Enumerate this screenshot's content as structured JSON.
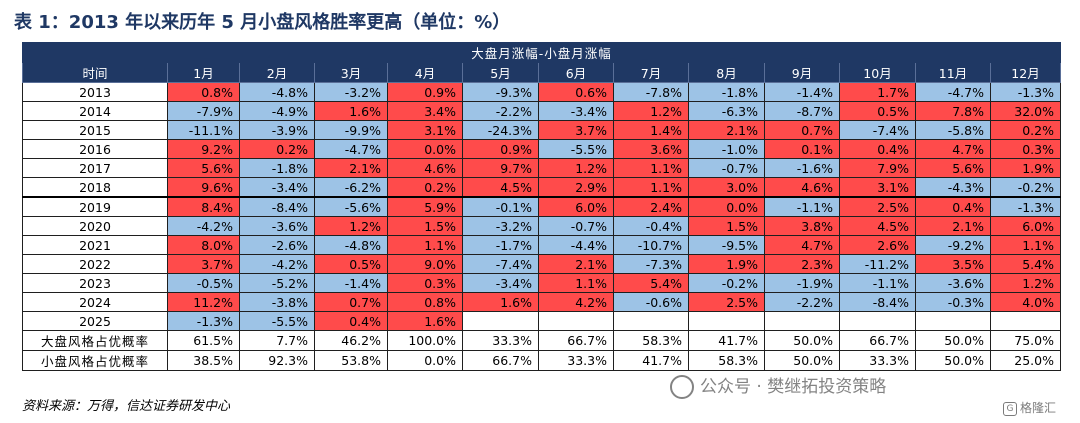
{
  "title": "表 1：2013 年以来历年 5 月小盘风格胜率更高（单位：%）",
  "table": {
    "banner": "大盘月涨幅-小盘月涨幅",
    "header": [
      "时间",
      "1月",
      "2月",
      "3月",
      "4月",
      "5月",
      "6月",
      "7月",
      "8月",
      "9月",
      "10月",
      "11月",
      "12月"
    ],
    "rows": [
      {
        "year": "2013",
        "cells": [
          "0.8%",
          "-4.8%",
          "-3.2%",
          "0.9%",
          "-9.3%",
          "0.6%",
          "-7.8%",
          "-1.8%",
          "-1.4%",
          "1.7%",
          "-4.7%",
          "-1.3%"
        ]
      },
      {
        "year": "2014",
        "cells": [
          "-7.9%",
          "-4.9%",
          "1.6%",
          "3.4%",
          "-2.2%",
          "-3.4%",
          "1.2%",
          "-6.3%",
          "-8.7%",
          "0.5%",
          "7.8%",
          "32.0%"
        ]
      },
      {
        "year": "2015",
        "cells": [
          "-11.1%",
          "-3.9%",
          "-9.9%",
          "3.1%",
          "-24.3%",
          "3.7%",
          "1.4%",
          "2.1%",
          "0.7%",
          "-7.4%",
          "-5.8%",
          "0.2%"
        ]
      },
      {
        "year": "2016",
        "cells": [
          "9.2%",
          "0.2%",
          "-4.7%",
          "0.0%",
          "0.9%",
          "-5.5%",
          "3.6%",
          "-1.0%",
          "0.1%",
          "0.4%",
          "4.7%",
          "0.3%"
        ]
      },
      {
        "year": "2017",
        "cells": [
          "5.6%",
          "-1.8%",
          "2.1%",
          "4.6%",
          "9.7%",
          "1.2%",
          "1.1%",
          "-0.7%",
          "-1.6%",
          "7.9%",
          "5.6%",
          "1.9%"
        ]
      },
      {
        "year": "2018",
        "cells": [
          "9.6%",
          "-3.4%",
          "-6.2%",
          "0.2%",
          "4.5%",
          "2.9%",
          "1.1%",
          "3.0%",
          "4.6%",
          "3.1%",
          "-4.3%",
          "-0.2%"
        ]
      },
      {
        "year": "2019",
        "cells": [
          "8.4%",
          "-8.4%",
          "-5.6%",
          "5.9%",
          "-0.1%",
          "6.0%",
          "2.4%",
          "0.0%",
          "-1.1%",
          "2.5%",
          "0.4%",
          "-1.3%"
        ]
      },
      {
        "year": "2020",
        "cells": [
          "-4.2%",
          "-3.6%",
          "1.2%",
          "1.5%",
          "-3.2%",
          "-0.7%",
          "-0.4%",
          "1.5%",
          "3.8%",
          "4.5%",
          "2.1%",
          "6.0%"
        ]
      },
      {
        "year": "2021",
        "cells": [
          "8.0%",
          "-2.6%",
          "-4.8%",
          "1.1%",
          "-1.7%",
          "-4.4%",
          "-10.7%",
          "-9.5%",
          "4.7%",
          "2.6%",
          "-9.2%",
          "1.1%"
        ]
      },
      {
        "year": "2022",
        "cells": [
          "3.7%",
          "-4.2%",
          "0.5%",
          "9.0%",
          "-7.4%",
          "2.1%",
          "-7.3%",
          "1.9%",
          "2.3%",
          "-11.2%",
          "3.5%",
          "5.4%"
        ]
      },
      {
        "year": "2023",
        "cells": [
          "-0.5%",
          "-5.2%",
          "-1.4%",
          "0.3%",
          "-3.4%",
          "1.1%",
          "5.4%",
          "-0.2%",
          "-1.9%",
          "-1.1%",
          "-3.6%",
          "1.2%"
        ]
      },
      {
        "year": "2024",
        "cells": [
          "11.2%",
          "-3.8%",
          "0.7%",
          "0.8%",
          "1.6%",
          "4.2%",
          "-0.6%",
          "2.5%",
          "-2.2%",
          "-8.4%",
          "-0.3%",
          "4.0%"
        ]
      },
      {
        "year": "2025",
        "cells": [
          "-1.3%",
          "-5.5%",
          "0.4%",
          "1.6%",
          "",
          "",
          "",
          "",
          "",
          "",
          "",
          ""
        ]
      }
    ],
    "summary": [
      {
        "label": "大盘风格占优概率",
        "cells": [
          "61.5%",
          "7.7%",
          "46.2%",
          "100.0%",
          "33.3%",
          "66.7%",
          "58.3%",
          "41.7%",
          "50.0%",
          "66.7%",
          "50.0%",
          "75.0%"
        ]
      },
      {
        "label": "小盘风格占优概率",
        "cells": [
          "38.5%",
          "92.3%",
          "53.8%",
          "0.0%",
          "66.7%",
          "33.3%",
          "41.7%",
          "58.3%",
          "50.0%",
          "33.3%",
          "50.0%",
          "25.0%"
        ]
      }
    ]
  },
  "source": "资料来源：万得，信达证券研发中心",
  "watermark": "公众号 · 樊继拓投资策略",
  "logo": "格隆汇",
  "colors": {
    "header_bg": "#1f3864",
    "positive_cell": "#ff4b4b",
    "negative_cell": "#9dc3e6"
  }
}
